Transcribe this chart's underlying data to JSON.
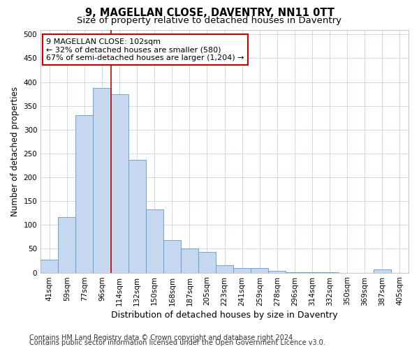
{
  "title1": "9, MAGELLAN CLOSE, DAVENTRY, NN11 0TT",
  "title2": "Size of property relative to detached houses in Daventry",
  "xlabel": "Distribution of detached houses by size in Daventry",
  "ylabel": "Number of detached properties",
  "categories": [
    "41sqm",
    "59sqm",
    "77sqm",
    "96sqm",
    "114sqm",
    "132sqm",
    "150sqm",
    "168sqm",
    "187sqm",
    "205sqm",
    "223sqm",
    "241sqm",
    "259sqm",
    "278sqm",
    "296sqm",
    "314sqm",
    "332sqm",
    "350sqm",
    "369sqm",
    "387sqm",
    "405sqm"
  ],
  "values": [
    27,
    116,
    330,
    388,
    375,
    237,
    132,
    68,
    50,
    43,
    15,
    9,
    10,
    4,
    1,
    1,
    1,
    0,
    0,
    6,
    0
  ],
  "bar_color": "#c5d8f0",
  "bar_edge_color": "#5b9bd5",
  "red_line_x": 3.5,
  "annotation_line1": "9 MAGELLAN CLOSE: 102sqm",
  "annotation_line2": "← 32% of detached houses are smaller (580)",
  "annotation_line3": "67% of semi-detached houses are larger (1,204) →",
  "annotation_box_color": "#ffffff",
  "annotation_box_edge": "#cc0000",
  "red_line_color": "#cc0000",
  "ylim": [
    0,
    510
  ],
  "yticks": [
    0,
    50,
    100,
    150,
    200,
    250,
    300,
    350,
    400,
    450,
    500
  ],
  "footer1": "Contains HM Land Registry data © Crown copyright and database right 2024.",
  "footer2": "Contains public sector information licensed under the Open Government Licence v3.0.",
  "title1_fontsize": 10.5,
  "title2_fontsize": 9.5,
  "xlabel_fontsize": 9,
  "ylabel_fontsize": 8.5,
  "tick_fontsize": 7.5,
  "footer_fontsize": 7,
  "annotation_fontsize": 8,
  "bg_color": "#ffffff",
  "grid_color": "#c8d4e8"
}
